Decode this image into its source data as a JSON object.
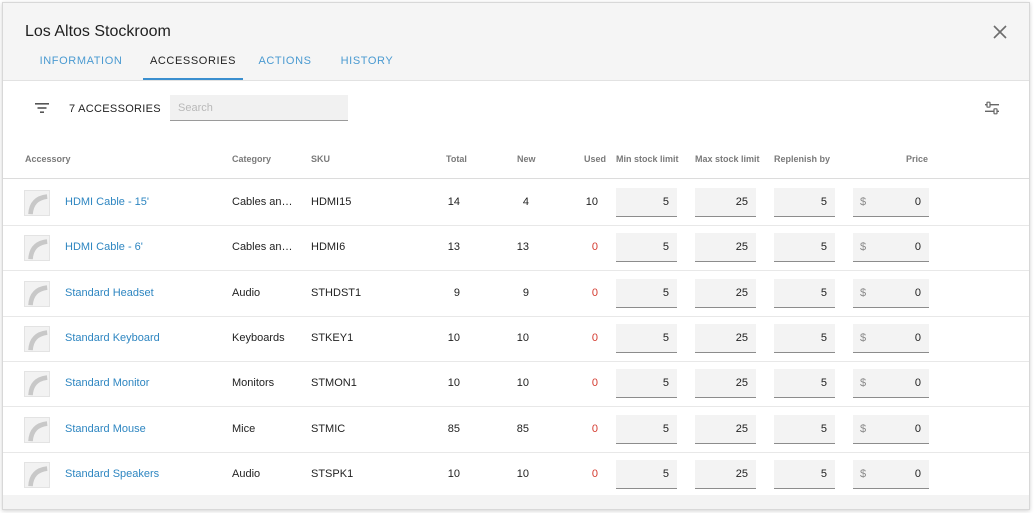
{
  "dialog": {
    "title": "Los Altos Stockroom",
    "tabs": [
      {
        "label": "INFORMATION",
        "active": false
      },
      {
        "label": "ACCESSORIES",
        "active": true
      },
      {
        "label": "ACTIONS",
        "active": false
      },
      {
        "label": "HISTORY",
        "active": false
      }
    ]
  },
  "toolbar": {
    "count_label": "7 ACCESSORIES",
    "search_placeholder": "Search",
    "search_value": ""
  },
  "table": {
    "columns": [
      "Accessory",
      "Category",
      "SKU",
      "Total",
      "New",
      "Used",
      "Min stock limit",
      "Max stock limit",
      "Replenish by",
      "Price"
    ],
    "currency_symbol": "$",
    "rows": [
      {
        "name": "HDMI Cable - 15'",
        "category": "Cables and Adapters",
        "sku": "HDMI15",
        "total": "14",
        "new": "4",
        "used": "10",
        "used_is_zero": false,
        "min": "5",
        "max": "25",
        "replenish": "5",
        "price": "0"
      },
      {
        "name": "HDMI Cable - 6'",
        "category": "Cables and Adapters",
        "sku": "HDMI6",
        "total": "13",
        "new": "13",
        "used": "0",
        "used_is_zero": true,
        "min": "5",
        "max": "25",
        "replenish": "5",
        "price": "0"
      },
      {
        "name": "Standard Headset",
        "category": "Audio",
        "sku": "STHDST1",
        "total": "9",
        "new": "9",
        "used": "0",
        "used_is_zero": true,
        "min": "5",
        "max": "25",
        "replenish": "5",
        "price": "0"
      },
      {
        "name": "Standard Keyboard",
        "category": "Keyboards",
        "sku": "STKEY1",
        "total": "10",
        "new": "10",
        "used": "0",
        "used_is_zero": true,
        "min": "5",
        "max": "25",
        "replenish": "5",
        "price": "0"
      },
      {
        "name": "Standard Monitor",
        "category": "Monitors",
        "sku": "STMON1",
        "total": "10",
        "new": "10",
        "used": "0",
        "used_is_zero": true,
        "min": "5",
        "max": "25",
        "replenish": "5",
        "price": "0"
      },
      {
        "name": "Standard Mouse",
        "category": "Mice",
        "sku": "STMIC",
        "total": "85",
        "new": "85",
        "used": "0",
        "used_is_zero": true,
        "min": "5",
        "max": "25",
        "replenish": "5",
        "price": "0"
      },
      {
        "name": "Standard Speakers",
        "category": "Audio",
        "sku": "STSPK1",
        "total": "10",
        "new": "10",
        "used": "0",
        "used_is_zero": true,
        "min": "5",
        "max": "25",
        "replenish": "5",
        "price": "0"
      }
    ]
  },
  "colors": {
    "accent": "#3a8fcf",
    "link": "#2e86c1",
    "zero_used": "#d43a2f"
  },
  "icons": {
    "close": "close-icon",
    "filter": "filter-icon",
    "settings": "tune-icon",
    "thumbnail": "accessory-thumbnail-icon"
  }
}
